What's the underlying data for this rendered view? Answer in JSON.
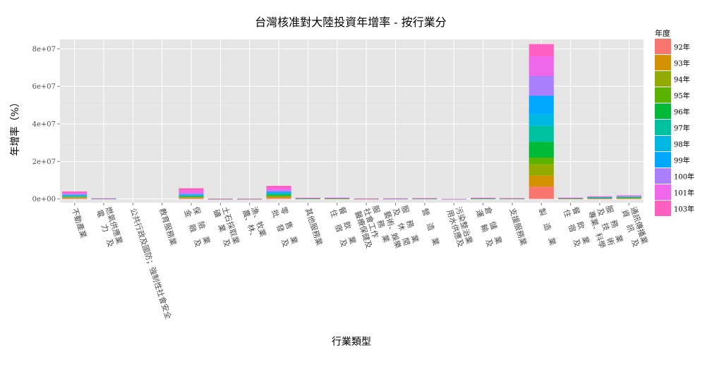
{
  "chart_data": {
    "type": "bar",
    "stacked": true,
    "title": "台灣核准對大陸投資年增率 - 按行業分",
    "xlabel": "行業類型",
    "ylabel": "年增率（%）",
    "ylim": [
      -2000000,
      85000000
    ],
    "yticks": [
      0,
      20000000,
      40000000,
      60000000,
      80000000
    ],
    "ytick_labels": [
      "0e+00",
      "2e+07",
      "4e+07",
      "6e+07",
      "8e+07"
    ],
    "grid": true,
    "legend": {
      "title": "年度",
      "position": "right"
    },
    "categories": [
      "不動產業",
      "電力及燃氣供應業",
      "公共行政及國防；強制性社會安全",
      "教育服務業",
      "金融及保險業",
      "礦業及土石採取業",
      "農、林、漁、牧業",
      "批發及零售業",
      "其他服務業",
      "住宿及餐飲業",
      "醫療保健及社會工作服務業",
      "藝術、娛樂及休閒服務業",
      "營造業",
      "用水供應及污染整治業",
      "運輸及倉儲業",
      "支援服務業",
      "製造業",
      "住宿及餐飲業",
      "專業、科學及技術服務業",
      "資訊及通訊傳播業"
    ],
    "category_display": [
      "不動產業",
      "電　力　及|燃氣供應業",
      "公共行政及國防；強制性社會安全",
      "教育服務業",
      "金　融　及|保　險　業",
      "礦　業　及|土石採取業",
      "農、林、|漁、牧業",
      "批　發　及|零　售　業",
      "其他服務業",
      "住　宿　及|餐　飲　業",
      "醫療保健及|社會工作|服　務　業",
      "藝術、娛樂|及　休　閒|服　務　業",
      "營　造　業",
      "用水供應及|污染整治業",
      "運　輸　及|倉　儲　業",
      "支援服務業",
      "製　造　業",
      "住　宿　及|餐　飲　業",
      "專業、科學|及　技　術|服　務　業",
      "資　訊　及|通訊傳播業"
    ],
    "series": [
      {
        "name": "92年",
        "color": "#F8766D",
        "values": [
          400000,
          60000,
          0,
          0,
          400000,
          20000,
          20000,
          500000,
          80000,
          100000,
          30000,
          40000,
          50000,
          10000,
          80000,
          50000,
          6500000,
          100000,
          150000,
          200000
        ]
      },
      {
        "name": "93年",
        "color": "#D39200",
        "values": [
          300000,
          30000,
          0,
          0,
          300000,
          10000,
          10000,
          500000,
          60000,
          80000,
          20000,
          30000,
          40000,
          5000,
          60000,
          40000,
          6000000,
          80000,
          150000,
          150000
        ]
      },
      {
        "name": "94年",
        "color": "#93AA00",
        "values": [
          200000,
          30000,
          0,
          0,
          300000,
          10000,
          10000,
          400000,
          50000,
          60000,
          20000,
          30000,
          30000,
          5000,
          50000,
          40000,
          6000000,
          60000,
          100000,
          150000
        ]
      },
      {
        "name": "95年",
        "color": "#5BB300",
        "values": [
          200000,
          20000,
          0,
          0,
          200000,
          10000,
          10000,
          400000,
          50000,
          60000,
          20000,
          20000,
          30000,
          5000,
          50000,
          30000,
          3500000,
          60000,
          100000,
          150000
        ]
      },
      {
        "name": "96年",
        "color": "#00BA38",
        "values": [
          200000,
          20000,
          0,
          0,
          200000,
          10000,
          10000,
          500000,
          50000,
          50000,
          20000,
          20000,
          30000,
          5000,
          50000,
          30000,
          8500000,
          50000,
          100000,
          150000
        ]
      },
      {
        "name": "97年",
        "color": "#00C19F",
        "values": [
          200000,
          20000,
          0,
          0,
          200000,
          10000,
          10000,
          400000,
          40000,
          50000,
          20000,
          20000,
          30000,
          5000,
          40000,
          30000,
          8500000,
          50000,
          100000,
          150000
        ]
      },
      {
        "name": "98年",
        "color": "#00B9E3",
        "values": [
          300000,
          20000,
          0,
          0,
          300000,
          10000,
          10000,
          500000,
          50000,
          50000,
          20000,
          20000,
          30000,
          5000,
          40000,
          30000,
          6000000,
          50000,
          100000,
          150000
        ]
      },
      {
        "name": "99年",
        "color": "#00A9FF",
        "values": [
          400000,
          30000,
          0,
          0,
          500000,
          10000,
          10000,
          600000,
          50000,
          60000,
          30000,
          30000,
          40000,
          5000,
          50000,
          40000,
          10000000,
          60000,
          150000,
          200000
        ]
      },
      {
        "name": "100年",
        "color": "#AB7FFF",
        "values": [
          500000,
          30000,
          0,
          0,
          700000,
          10000,
          10000,
          700000,
          60000,
          60000,
          30000,
          30000,
          40000,
          5000,
          60000,
          40000,
          10500000,
          60000,
          150000,
          200000
        ]
      },
      {
        "name": "101年",
        "color": "#EF67EB",
        "values": [
          500000,
          30000,
          0,
          0,
          1300000,
          10000,
          10000,
          1200000,
          60000,
          60000,
          30000,
          30000,
          40000,
          5000,
          60000,
          40000,
          10500000,
          60000,
          150000,
          200000
        ]
      },
      {
        "name": "103年",
        "color": "#FF61C3",
        "values": [
          800000,
          30000,
          0,
          0,
          1300000,
          10000,
          10000,
          1300000,
          70000,
          70000,
          30000,
          30000,
          40000,
          5000,
          70000,
          40000,
          6500000,
          70000,
          200000,
          250000
        ]
      }
    ]
  }
}
